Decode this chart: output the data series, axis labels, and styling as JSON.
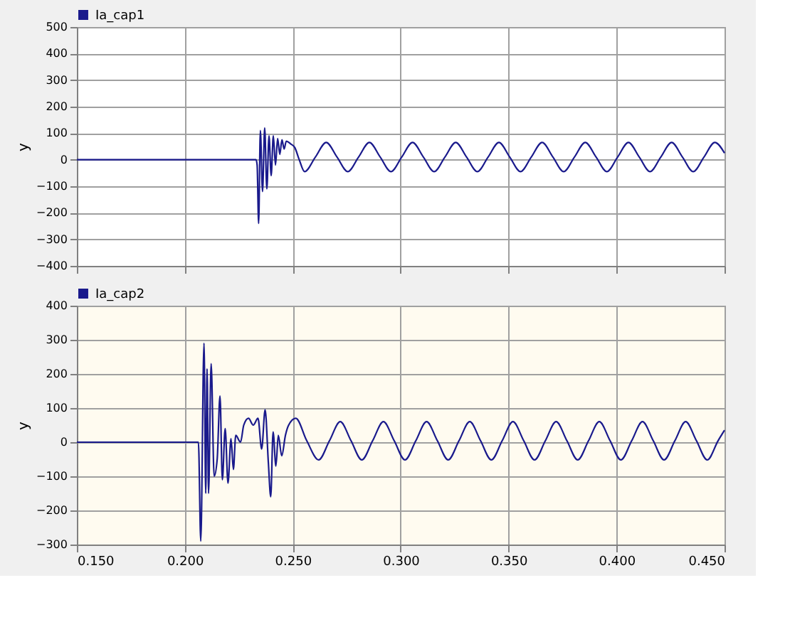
{
  "chart_data": [
    {
      "type": "line",
      "ylabel": "y",
      "xlim": [
        0.15,
        0.45
      ],
      "ylim": [
        -400,
        500
      ],
      "yticks": [
        -400,
        -300,
        -200,
        -100,
        0,
        100,
        200,
        300,
        400,
        500
      ],
      "xticks": [
        0.15,
        0.2,
        0.25,
        0.3,
        0.35,
        0.4,
        0.45
      ],
      "tick_labels": "y",
      "grid": true,
      "legend": "top left",
      "marker": "none",
      "line_style": "solid",
      "series": [
        {
          "name": "Ia_cap1",
          "color": "#1a1a8c",
          "x": [
            0.15,
            0.233,
            0.2335,
            0.2342,
            0.235,
            0.236,
            0.237,
            0.238,
            0.239,
            0.24,
            0.241,
            0.242,
            0.243,
            0.244,
            0.245,
            0.246,
            0.247,
            0.249,
            0.251,
            0.253,
            0.2555,
            0.2605,
            0.2655,
            0.2705,
            0.2755,
            0.2805,
            0.2855,
            0.2905,
            0.2955,
            0.3005,
            0.3055,
            0.3105,
            0.3155,
            0.3205,
            0.3255,
            0.3305,
            0.3355,
            0.3405,
            0.3455,
            0.3505,
            0.3555,
            0.3605,
            0.3655,
            0.3705,
            0.3755,
            0.3805,
            0.3855,
            0.3905,
            0.3955,
            0.4005,
            0.4055,
            0.4105,
            0.4155,
            0.4205,
            0.4255,
            0.4305,
            0.4355,
            0.4405,
            0.4455,
            0.45
          ],
          "values": [
            0,
            0,
            -20,
            -240,
            110,
            -120,
            120,
            -110,
            90,
            -60,
            90,
            -20,
            80,
            20,
            75,
            40,
            70,
            60,
            45,
            0,
            -45,
            10,
            65,
            10,
            -45,
            10,
            65,
            10,
            -45,
            10,
            65,
            10,
            -45,
            10,
            65,
            10,
            -45,
            10,
            65,
            10,
            -45,
            10,
            65,
            10,
            -45,
            10,
            65,
            10,
            -45,
            10,
            65,
            10,
            -45,
            10,
            65,
            10,
            -45,
            10,
            65,
            25
          ]
        }
      ]
    },
    {
      "type": "line",
      "ylabel": "y",
      "xlim": [
        0.15,
        0.45
      ],
      "ylim": [
        -300,
        400
      ],
      "yticks": [
        -300,
        -200,
        -100,
        0,
        100,
        200,
        300,
        400
      ],
      "xticks": [
        {
          "value": 0.15,
          "label": "0.150"
        },
        {
          "value": 0.2,
          "label": "0.200"
        },
        {
          "value": 0.25,
          "label": "0.250"
        },
        {
          "value": 0.3,
          "label": "0.300"
        },
        {
          "value": 0.35,
          "label": "0.350"
        },
        {
          "value": 0.4,
          "label": "0.400"
        },
        {
          "value": 0.45,
          "label": "0.450"
        }
      ],
      "grid": true,
      "legend": "top left",
      "marker": "none",
      "line_style": "solid",
      "series": [
        {
          "name": "Ia_cap2",
          "color": "#1a1a8c",
          "x": [
            0.15,
            0.2063,
            0.2074,
            0.2089,
            0.2097,
            0.2103,
            0.211,
            0.2122,
            0.2136,
            0.215,
            0.2163,
            0.2174,
            0.2187,
            0.22,
            0.2214,
            0.2225,
            0.2236,
            0.2258,
            0.2273,
            0.2295,
            0.2317,
            0.2339,
            0.2356,
            0.2372,
            0.2387,
            0.2398,
            0.2409,
            0.2422,
            0.2433,
            0.2449,
            0.2466,
            0.2481,
            0.2514,
            0.2565,
            0.262,
            0.267,
            0.272,
            0.277,
            0.282,
            0.287,
            0.292,
            0.297,
            0.302,
            0.307,
            0.312,
            0.317,
            0.322,
            0.327,
            0.332,
            0.337,
            0.342,
            0.347,
            0.352,
            0.357,
            0.362,
            0.367,
            0.372,
            0.377,
            0.382,
            0.387,
            0.392,
            0.397,
            0.402,
            0.407,
            0.412,
            0.417,
            0.422,
            0.427,
            0.432,
            0.437,
            0.442,
            0.447,
            0.45
          ],
          "values": [
            0,
            0,
            -290,
            290,
            -150,
            215,
            -150,
            230,
            -100,
            -50,
            135,
            -110,
            40,
            -120,
            10,
            -80,
            20,
            0,
            50,
            70,
            50,
            70,
            -20,
            95,
            -60,
            -160,
            30,
            -70,
            20,
            -40,
            20,
            50,
            70,
            4,
            -52,
            4,
            60,
            4,
            -52,
            4,
            60,
            4,
            -52,
            4,
            60,
            4,
            -52,
            4,
            60,
            4,
            -52,
            4,
            60,
            4,
            -52,
            4,
            60,
            4,
            -52,
            4,
            60,
            4,
            -52,
            4,
            60,
            4,
            -52,
            4,
            60,
            4,
            -52,
            4,
            35
          ]
        }
      ]
    }
  ]
}
